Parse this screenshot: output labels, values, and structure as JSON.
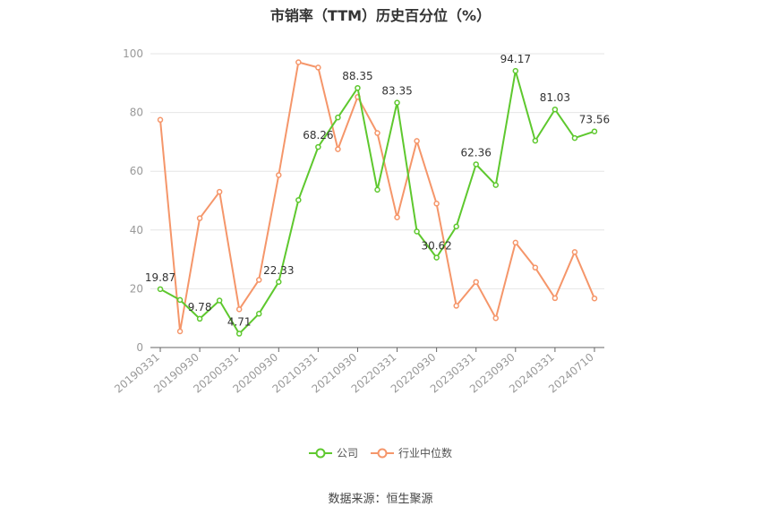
{
  "chart_data": {
    "type": "line",
    "title": "市销率（TTM）历史百分位（%）",
    "xlabel": "",
    "ylabel": "",
    "ylim": [
      0,
      100
    ],
    "yticks": [
      0,
      20,
      40,
      60,
      80,
      100
    ],
    "grid": true,
    "legend_position": "bottom",
    "tick_labels": [
      "20190331",
      "20190930",
      "20200331",
      "20200930",
      "20210331",
      "20210930",
      "20220331",
      "20220930",
      "20230331",
      "20230930",
      "20240331",
      "20240710"
    ],
    "x": [
      "20190331",
      "20190630",
      "20190930",
      "20191231",
      "20200331",
      "20200630",
      "20200930",
      "20201231",
      "20210331",
      "20210630",
      "20210930",
      "20211231",
      "20220331",
      "20220630",
      "20220930",
      "20221231",
      "20230331",
      "20230630",
      "20230930",
      "20231231",
      "20240331",
      "20240630",
      "20240710"
    ],
    "series": [
      {
        "name": "公司",
        "color": "#5ec82e",
        "values": [
          19.87,
          16.2,
          9.78,
          16.0,
          4.71,
          11.5,
          22.33,
          50.2,
          68.26,
          78.3,
          88.35,
          53.7,
          83.35,
          39.5,
          30.62,
          41.2,
          62.36,
          55.3,
          94.17,
          70.4,
          81.03,
          71.3,
          73.56
        ],
        "labels": [
          "19.87",
          "",
          "9.78",
          "",
          "4.71",
          "",
          "22.33",
          "",
          "68.26",
          "",
          "88.35",
          "",
          "83.35",
          "",
          "30.62",
          "",
          "62.36",
          "",
          "94.17",
          "",
          "81.03",
          "",
          "73.56"
        ]
      },
      {
        "name": "行业中位数",
        "color": "#f5966a",
        "values": [
          77.5,
          5.5,
          44.0,
          53.0,
          13.0,
          23.0,
          58.7,
          97.1,
          95.3,
          67.5,
          85.3,
          73.0,
          44.3,
          70.3,
          49.0,
          14.2,
          22.3,
          10.0,
          35.7,
          27.2,
          16.8,
          32.5,
          16.7
        ]
      }
    ]
  },
  "source_text": "数据来源：恒生聚源"
}
